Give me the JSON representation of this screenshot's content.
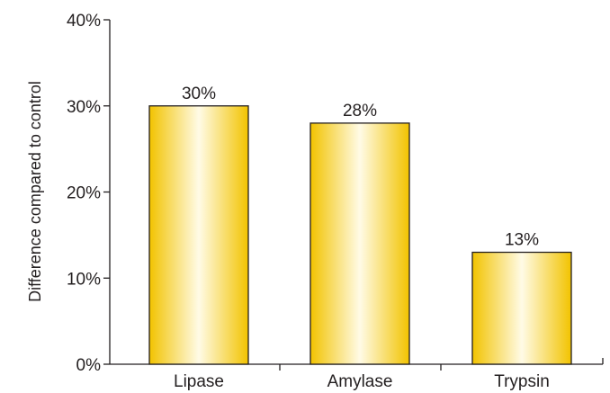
{
  "chart_data": {
    "type": "bar",
    "categories": [
      "Lipase",
      "Amylase",
      "Trypsin"
    ],
    "values": [
      30,
      28,
      13
    ],
    "data_labels": [
      "30%",
      "28%",
      "13%"
    ],
    "title": "",
    "xlabel": "",
    "ylabel": "Difference compared to control",
    "ylim": [
      0,
      40
    ],
    "yticks": [
      0,
      10,
      20,
      30,
      40
    ],
    "ytick_labels": [
      "0%",
      "10%",
      "20%",
      "30%",
      "40%"
    ],
    "grid": false,
    "bar_colors": {
      "edge": "#f2c300",
      "center": "#fffbe6",
      "outline": "#231f20"
    }
  }
}
